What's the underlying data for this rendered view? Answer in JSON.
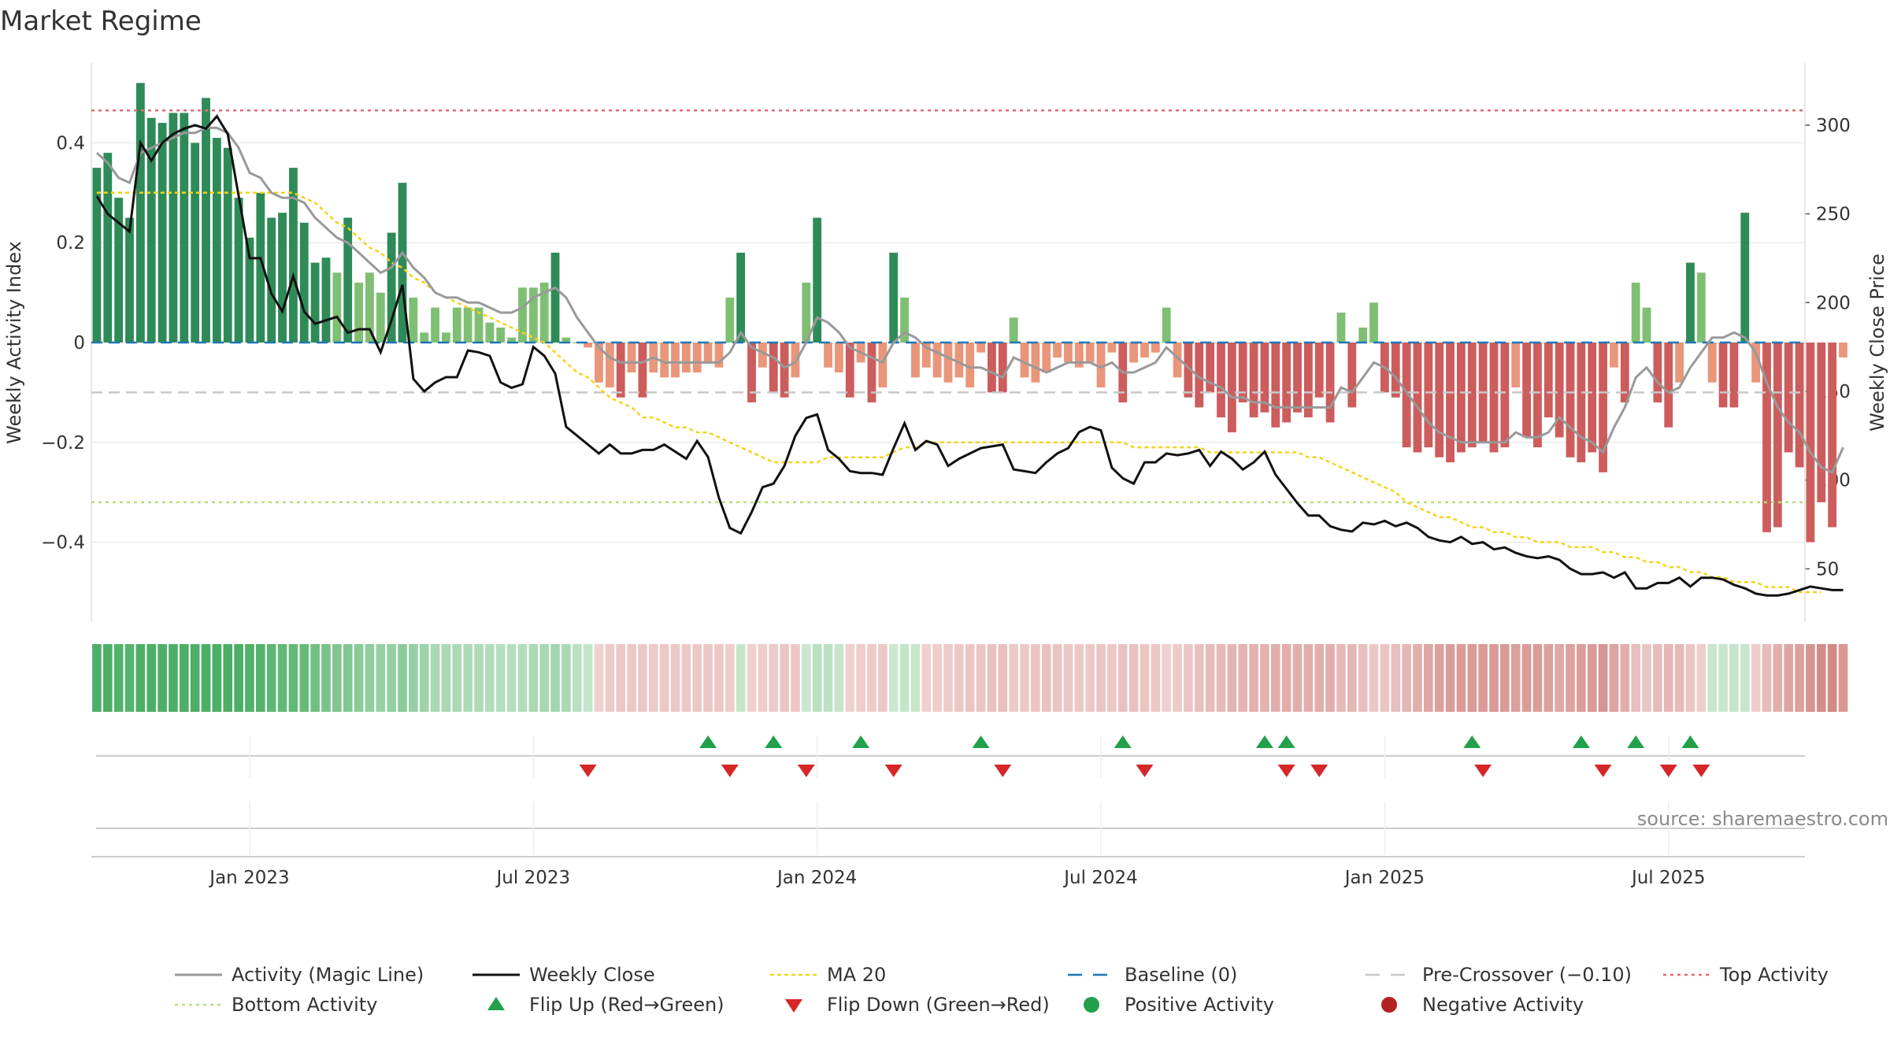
{
  "title": "Market Regime",
  "source": "source: sharemaestro.com",
  "colors": {
    "strong_green": "#2e8b57",
    "light_green": "#7fbf73",
    "strong_red": "#cd5c5c",
    "light_red": "#e9967a",
    "magic_line": "#999999",
    "close_line": "#111111",
    "ma20": "#f4d31a",
    "baseline": "#1f77b4",
    "pre_crossover": "#c8c8c8",
    "top_line": "#e06c75",
    "bottom_line": "#b5e07a",
    "flip_up": "#22a14a",
    "flip_down": "#d62728",
    "strip_green_dark": "#4caf65",
    "strip_green_light": "#cbe8cf",
    "strip_red_dark": "#c9706b",
    "strip_red_light": "#f0d3d1"
  },
  "chart_data": {
    "type": "bar",
    "title": "Market Regime",
    "xlabel": "",
    "ylabel": "Weekly Activity Index",
    "ylabel_right": "Weekly Close Price",
    "ylim": [
      -0.56,
      0.56
    ],
    "ylim_right": [
      20,
      335
    ],
    "yticks": [
      -0.4,
      -0.2,
      0,
      0.2,
      0.4
    ],
    "ytick_labels": [
      "−0.4",
      "−0.2",
      "0",
      "0.2",
      "0.4"
    ],
    "yticks_right": [
      50,
      100,
      150,
      200,
      250,
      300
    ],
    "x_start": "2022-10-31",
    "weeks": 157,
    "x_ticks": [
      {
        "week": 14,
        "label": "Jan 2023"
      },
      {
        "week": 40,
        "label": "Jul 2023"
      },
      {
        "week": 66,
        "label": "Jan 2024"
      },
      {
        "week": 92,
        "label": "Jul 2024"
      },
      {
        "week": 118,
        "label": "Jan 2025"
      },
      {
        "week": 144,
        "label": "Jul 2025"
      }
    ],
    "reference_lines": {
      "baseline": 0,
      "pre_crossover": -0.1,
      "top_activity": 0.465,
      "bottom_activity": -0.32
    },
    "activity": [
      0.35,
      0.38,
      0.29,
      0.25,
      0.52,
      0.45,
      0.44,
      0.46,
      0.46,
      0.4,
      0.49,
      0.41,
      0.39,
      0.29,
      0.21,
      0.3,
      0.25,
      0.26,
      0.35,
      0.24,
      0.16,
      0.17,
      0.14,
      0.25,
      0.12,
      0.14,
      0.1,
      0.22,
      0.32,
      0.09,
      0.02,
      0.07,
      0.02,
      0.07,
      0.07,
      0.07,
      0.04,
      0.03,
      0.01,
      0.11,
      0.11,
      0.12,
      0.18,
      0.01,
      0,
      -0.01,
      -0.08,
      -0.09,
      -0.11,
      -0.06,
      -0.11,
      -0.06,
      -0.07,
      -0.07,
      -0.06,
      -0.06,
      -0.04,
      -0.05,
      0.09,
      0.18,
      -0.12,
      -0.05,
      -0.1,
      -0.11,
      -0.07,
      0.12,
      0.25,
      -0.05,
      -0.06,
      -0.11,
      -0.04,
      -0.12,
      -0.09,
      0.18,
      0.09,
      -0.07,
      -0.05,
      -0.07,
      -0.08,
      -0.07,
      -0.09,
      -0.02,
      -0.1,
      -0.1,
      0.05,
      -0.07,
      -0.08,
      -0.06,
      -0.03,
      -0.04,
      -0.05,
      -0.04,
      -0.09,
      -0.02,
      -0.12,
      -0.04,
      -0.03,
      -0.02,
      0.07,
      -0.07,
      -0.11,
      -0.13,
      -0.1,
      -0.15,
      -0.18,
      -0.12,
      -0.15,
      -0.14,
      -0.17,
      -0.16,
      -0.14,
      -0.15,
      -0.11,
      -0.16,
      0.06,
      -0.13,
      0.03,
      0.08,
      -0.1,
      -0.11,
      -0.21,
      -0.22,
      -0.21,
      -0.23,
      -0.24,
      -0.22,
      -0.21,
      -0.2,
      -0.22,
      -0.21,
      -0.09,
      -0.19,
      -0.21,
      -0.15,
      -0.19,
      -0.23,
      -0.24,
      -0.22,
      -0.26,
      -0.05,
      -0.12,
      0.12,
      0.07,
      -0.12,
      -0.17,
      -0.08,
      0.16,
      0.14,
      -0.08,
      -0.13,
      -0.13,
      0.26,
      -0.08,
      -0.38,
      -0.37,
      -0.22,
      -0.25,
      -0.4,
      -0.32,
      -0.37,
      -0.03
    ],
    "close": [
      260,
      250,
      245,
      240,
      290,
      280,
      290,
      295,
      298,
      300,
      298,
      305,
      295,
      260,
      225,
      225,
      205,
      195,
      215,
      195,
      188,
      190,
      192,
      183,
      185,
      185,
      172,
      190,
      210,
      157,
      150,
      155,
      158,
      158,
      173,
      172,
      170,
      155,
      152,
      154,
      175,
      170,
      160,
      130,
      125,
      120,
      115,
      120,
      115,
      115,
      117,
      117,
      120,
      116,
      112,
      122,
      113,
      90,
      73,
      70,
      82,
      96,
      98,
      108,
      125,
      135,
      137,
      117,
      112,
      105,
      104,
      104,
      103,
      118,
      132,
      117,
      122,
      120,
      108,
      112,
      115,
      118,
      119,
      120,
      106,
      105,
      104,
      110,
      115,
      118,
      127,
      130,
      128,
      107,
      101,
      98,
      110,
      110,
      115,
      114,
      115,
      117,
      108,
      116,
      112,
      106,
      110,
      116,
      103,
      95,
      87,
      80,
      80,
      74,
      72,
      71,
      76,
      75,
      77,
      74,
      76,
      73,
      68,
      66,
      65,
      68,
      64,
      65,
      61,
      62,
      59,
      57,
      56,
      57,
      55,
      50,
      47,
      47,
      48,
      45,
      48,
      39,
      39,
      42,
      42,
      45,
      40,
      45,
      45,
      44,
      41,
      39,
      36,
      35,
      35,
      36,
      38,
      40,
      39,
      38,
      38
    ],
    "magic_line": [
      0.38,
      0.36,
      0.33,
      0.32,
      0.38,
      0.39,
      0.4,
      0.41,
      0.42,
      0.42,
      0.43,
      0.43,
      0.42,
      0.39,
      0.34,
      0.33,
      0.3,
      0.29,
      0.29,
      0.28,
      0.25,
      0.23,
      0.21,
      0.2,
      0.18,
      0.16,
      0.14,
      0.15,
      0.18,
      0.15,
      0.13,
      0.1,
      0.09,
      0.09,
      0.08,
      0.08,
      0.07,
      0.06,
      0.06,
      0.07,
      0.09,
      0.1,
      0.11,
      0.09,
      0.05,
      0.02,
      -0.01,
      -0.03,
      -0.04,
      -0.04,
      -0.04,
      -0.03,
      -0.04,
      -0.04,
      -0.04,
      -0.04,
      -0.04,
      -0.04,
      -0.02,
      0.02,
      -0.01,
      -0.02,
      -0.03,
      -0.05,
      -0.04,
      0.0,
      0.05,
      0.04,
      0.02,
      -0.01,
      -0.02,
      -0.03,
      -0.04,
      0.0,
      0.02,
      0.01,
      -0.01,
      -0.02,
      -0.03,
      -0.04,
      -0.05,
      -0.05,
      -0.06,
      -0.07,
      -0.03,
      -0.04,
      -0.05,
      -0.06,
      -0.05,
      -0.04,
      -0.04,
      -0.04,
      -0.05,
      -0.04,
      -0.06,
      -0.06,
      -0.05,
      -0.04,
      -0.01,
      -0.03,
      -0.05,
      -0.07,
      -0.08,
      -0.09,
      -0.11,
      -0.11,
      -0.12,
      -0.12,
      -0.13,
      -0.13,
      -0.13,
      -0.13,
      -0.13,
      -0.13,
      -0.09,
      -0.1,
      -0.07,
      -0.04,
      -0.05,
      -0.07,
      -0.1,
      -0.13,
      -0.16,
      -0.18,
      -0.19,
      -0.2,
      -0.2,
      -0.2,
      -0.2,
      -0.2,
      -0.18,
      -0.19,
      -0.19,
      -0.18,
      -0.15,
      -0.17,
      -0.19,
      -0.2,
      -0.22,
      -0.17,
      -0.13,
      -0.07,
      -0.05,
      -0.08,
      -0.1,
      -0.09,
      -0.05,
      -0.02,
      0.01,
      0.01,
      0.02,
      0.01,
      -0.02,
      -0.08,
      -0.13,
      -0.16,
      -0.18,
      -0.22,
      -0.25,
      -0.26,
      -0.21
    ],
    "ma20": [
      0.3,
      0.3,
      0.3,
      0.3,
      0.3,
      0.3,
      0.3,
      0.3,
      0.3,
      0.3,
      0.3,
      0.3,
      0.3,
      0.3,
      0.3,
      0.3,
      0.3,
      0.3,
      0.3,
      0.29,
      0.28,
      0.26,
      0.24,
      0.23,
      0.21,
      0.19,
      0.18,
      0.16,
      0.15,
      0.13,
      0.12,
      0.1,
      0.09,
      0.08,
      0.07,
      0.06,
      0.05,
      0.04,
      0.03,
      0.02,
      0.01,
      0.0,
      -0.02,
      -0.04,
      -0.06,
      -0.07,
      -0.09,
      -0.11,
      -0.12,
      -0.13,
      -0.15,
      -0.15,
      -0.16,
      -0.17,
      -0.17,
      -0.18,
      -0.18,
      -0.19,
      -0.2,
      -0.21,
      -0.22,
      -0.23,
      -0.24,
      -0.24,
      -0.24,
      -0.24,
      -0.24,
      -0.23,
      -0.23,
      -0.23,
      -0.23,
      -0.23,
      -0.23,
      -0.22,
      -0.21,
      -0.21,
      -0.2,
      -0.2,
      -0.2,
      -0.2,
      -0.2,
      -0.2,
      -0.2,
      -0.2,
      -0.2,
      -0.2,
      -0.2,
      -0.2,
      -0.2,
      -0.2,
      -0.2,
      -0.2,
      -0.2,
      -0.2,
      -0.2,
      -0.21,
      -0.21,
      -0.21,
      -0.21,
      -0.21,
      -0.21,
      -0.21,
      -0.22,
      -0.22,
      -0.22,
      -0.22,
      -0.22,
      -0.22,
      -0.22,
      -0.22,
      -0.22,
      -0.23,
      -0.23,
      -0.24,
      -0.25,
      -0.26,
      -0.27,
      -0.28,
      -0.29,
      -0.3,
      -0.32,
      -0.33,
      -0.34,
      -0.35,
      -0.35,
      -0.36,
      -0.37,
      -0.37,
      -0.38,
      -0.38,
      -0.39,
      -0.39,
      -0.4,
      -0.4,
      -0.4,
      -0.41,
      -0.41,
      -0.41,
      -0.42,
      -0.42,
      -0.43,
      -0.43,
      -0.44,
      -0.44,
      -0.45,
      -0.45,
      -0.46,
      -0.46,
      -0.47,
      -0.47,
      -0.48,
      -0.48,
      -0.48,
      -0.49,
      -0.49,
      -0.49,
      -0.5,
      -0.5,
      -0.5
    ],
    "flip_up_weeks": [
      56,
      62,
      70,
      81,
      94,
      107,
      109,
      126,
      136,
      141,
      146
    ],
    "flip_down_weeks": [
      45,
      58,
      65,
      73,
      83,
      96,
      109,
      112,
      127,
      138,
      144,
      147
    ],
    "legend": [
      {
        "key": "magic",
        "label": "Activity (Magic Line)"
      },
      {
        "key": "close",
        "label": "Weekly Close"
      },
      {
        "key": "ma",
        "label": "MA 20"
      },
      {
        "key": "base",
        "label": "Baseline (0)"
      },
      {
        "key": "pre",
        "label": "Pre-Crossover (−0.10)"
      },
      {
        "key": "top",
        "label": "Top Activity"
      },
      {
        "key": "bottom",
        "label": "Bottom Activity"
      },
      {
        "key": "up",
        "label": "Flip Up (Red→Green)"
      },
      {
        "key": "down",
        "label": "Flip Down (Green→Red)"
      },
      {
        "key": "pos",
        "label": "Positive Activity"
      },
      {
        "key": "neg",
        "label": "Negative Activity"
      }
    ]
  }
}
